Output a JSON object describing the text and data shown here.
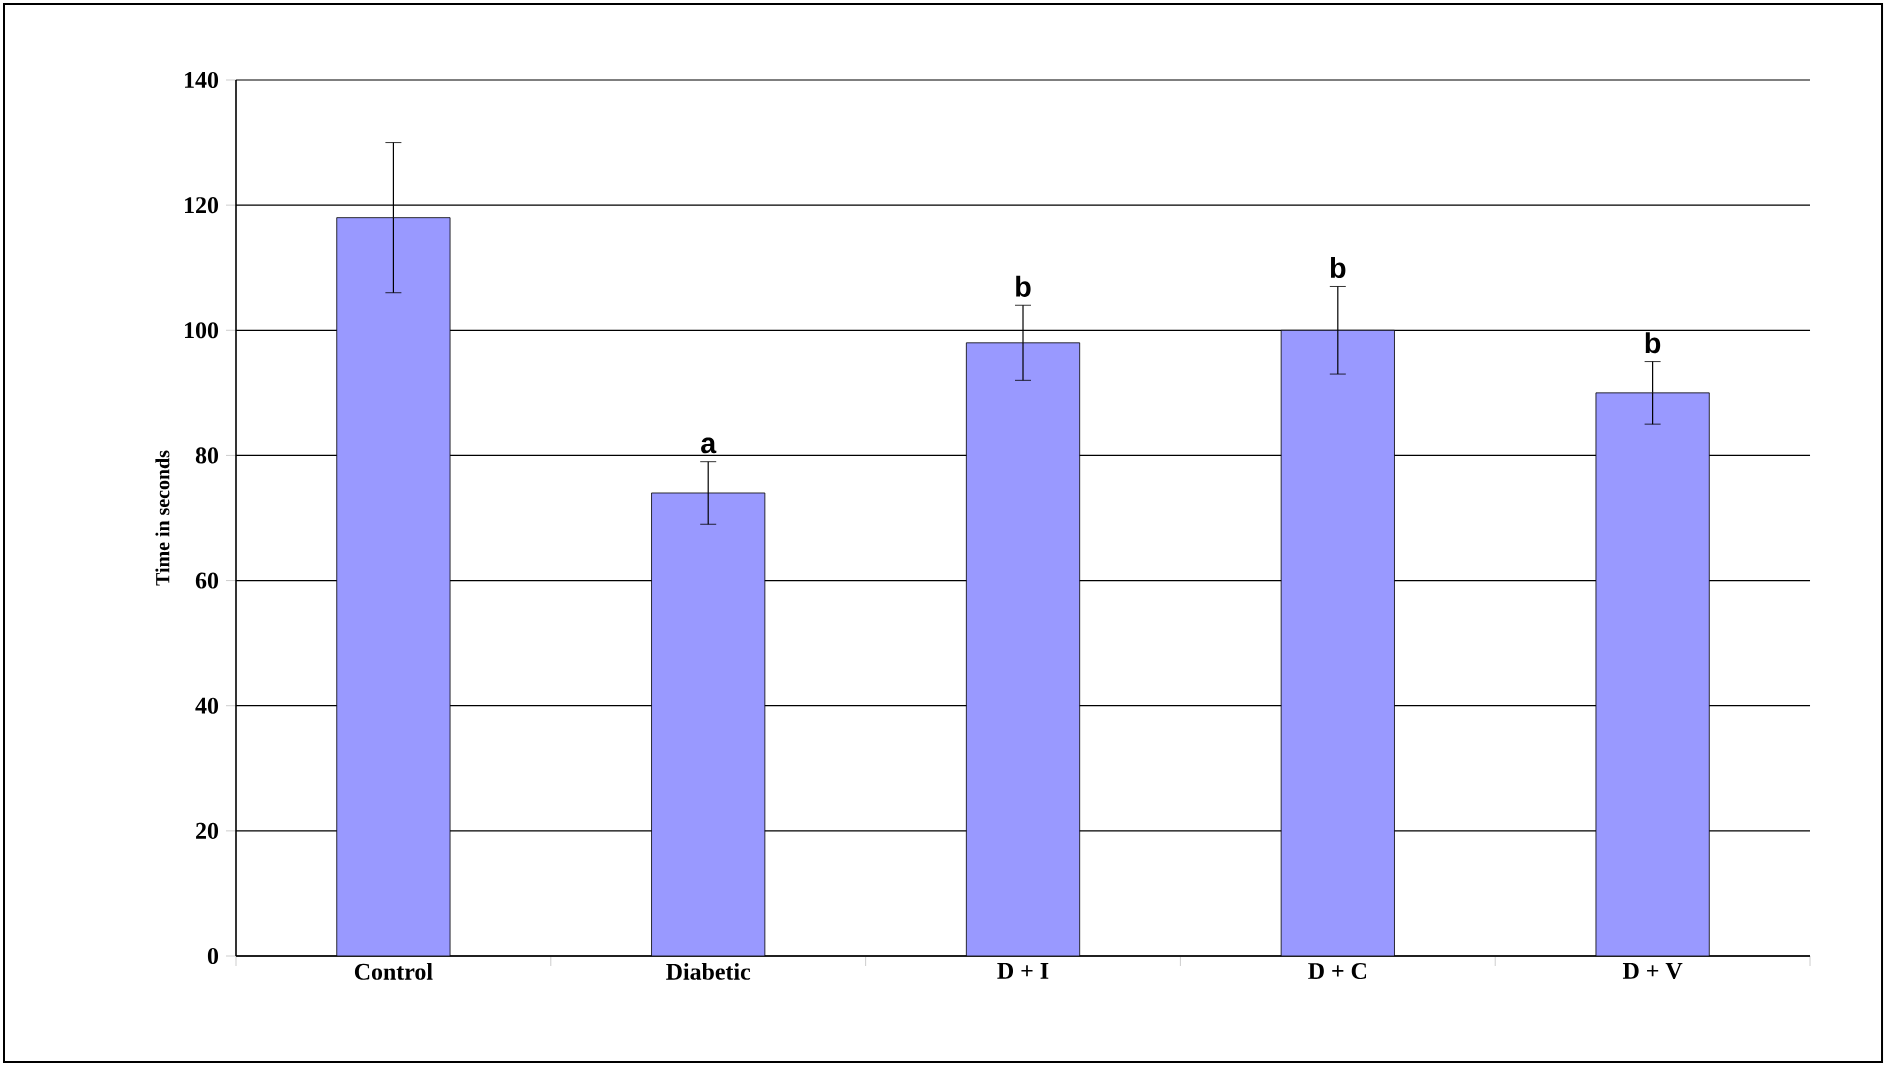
{
  "chart_data": {
    "type": "bar",
    "ylabel": "Time in seconds",
    "categories": [
      "Control",
      "Diabetic",
      "D + I",
      "D + C",
      "D + V"
    ],
    "values": [
      118,
      74,
      98,
      100,
      90
    ],
    "errors": [
      12,
      5,
      6,
      7,
      5
    ],
    "color": "#9999ff",
    "ylim": [
      0,
      140
    ],
    "yticks": [
      0,
      20,
      40,
      60,
      80,
      100,
      120,
      140
    ],
    "grid": "y",
    "annotations": [
      {
        "text": "a",
        "x": "Diabetic",
        "y": 79
      },
      {
        "text": "b",
        "x": "D + I",
        "y": 104
      },
      {
        "text": "b",
        "x": "D + C",
        "y": 107
      },
      {
        "text": "b",
        "x": "D + V",
        "y": 95
      }
    ]
  }
}
